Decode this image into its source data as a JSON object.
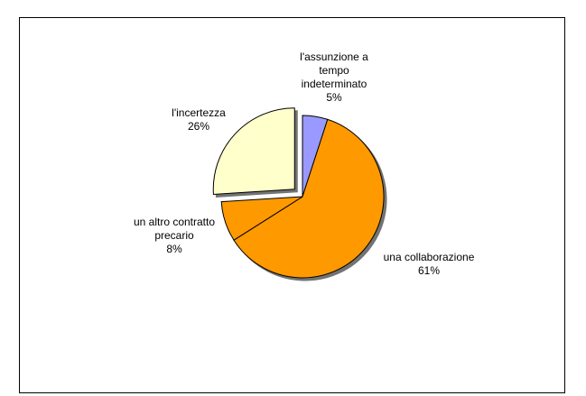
{
  "chart_data": {
    "type": "pie",
    "title": "",
    "categories": [
      "l'assunzione a tempo indeterminato",
      "una collaborazione",
      "un altro contratto precario",
      "l'incertezza"
    ],
    "values": [
      5,
      61,
      8,
      26
    ],
    "colors": [
      "#9999ff",
      "#ff9900",
      "#ff9900",
      "#ffffcc"
    ],
    "exploded": [
      false,
      false,
      false,
      true
    ],
    "start_angle_deg_clockwise_from_top": 0,
    "legend": "none",
    "data_labels": [
      {
        "lines": [
          "l'assunzione a",
          "tempo",
          "indeterminato"
        ],
        "percent": "5%"
      },
      {
        "lines": [
          "una collaborazione"
        ],
        "percent": "61%"
      },
      {
        "lines": [
          "un altro contratto",
          "precario"
        ],
        "percent": "8%"
      },
      {
        "lines": [
          "l'incertezza"
        ],
        "percent": "26%"
      }
    ]
  }
}
